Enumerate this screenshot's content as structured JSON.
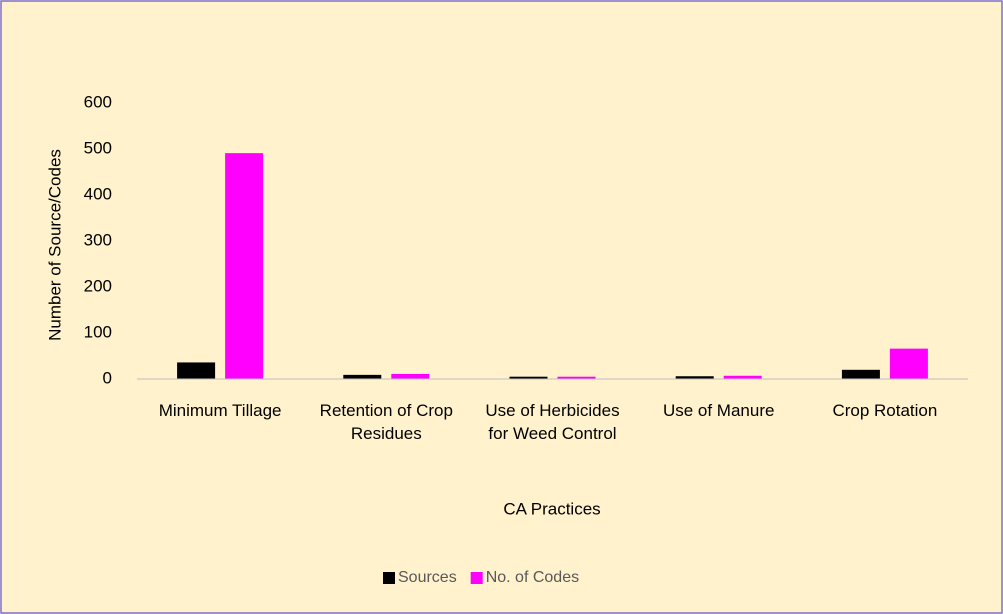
{
  "chart_data": {
    "type": "bar",
    "categories": [
      "Minimum Tillage",
      "Retention of Crop Residues",
      "Use of Herbicides for Weed Control",
      "Use of Manure",
      "Crop Rotation"
    ],
    "series": [
      {
        "name": "Sources",
        "color": "#000000",
        "values": [
          36,
          9,
          5,
          6,
          20
        ]
      },
      {
        "name": "No. of Codes",
        "color": "#ff00ff",
        "values": [
          491,
          11,
          5,
          7,
          66
        ]
      }
    ],
    "x_label": "CA Practices",
    "y_label": "Number of Source/Codes",
    "ylim": [
      0,
      600
    ],
    "yticks": [
      0,
      100,
      200,
      300,
      400,
      500,
      600
    ],
    "grid": false,
    "legend": "bottom"
  }
}
